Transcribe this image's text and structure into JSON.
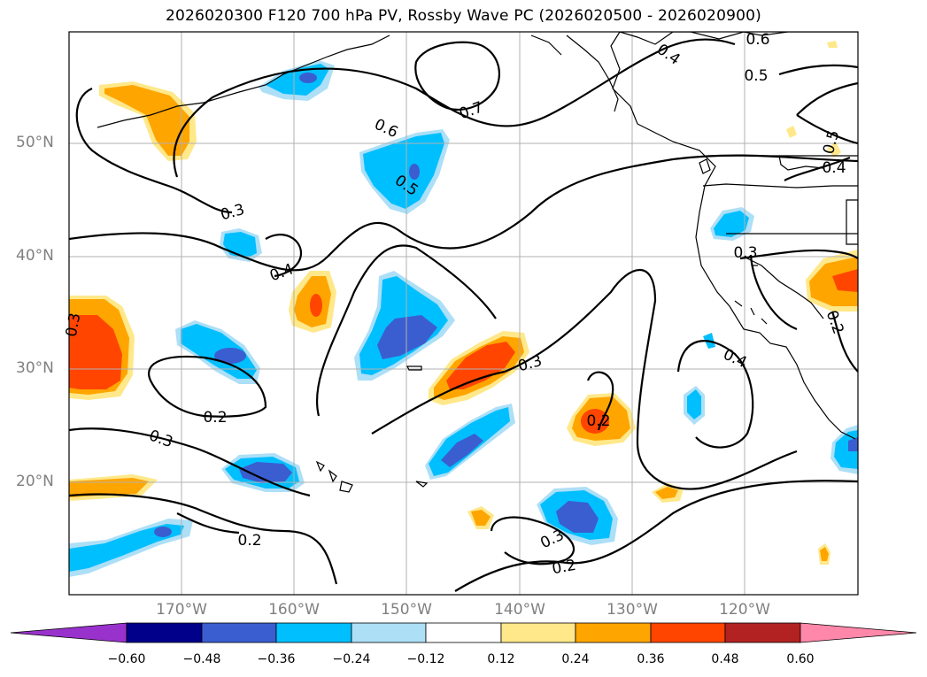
{
  "title": "2026020300 F120 700 hPa PV, Rossby Wave PC (2026020500 - 2026020900)",
  "lat_labels": [
    "50°N",
    "40°N",
    "30°N",
    "20°N"
  ],
  "lon_labels": [
    "170°W",
    "160°W",
    "150°W",
    "140°W",
    "130°W",
    "120°W"
  ],
  "contour_labels": [
    "0.6",
    "0.4",
    "0.5",
    "0.7",
    "0.6",
    "0.5",
    "0.5",
    "0.4",
    "0.3",
    "0.4",
    "0.3",
    "0.3",
    "0.2",
    "0.3",
    "0.3",
    "0.4",
    "0.2",
    "0.2",
    "0.3",
    "0.2",
    "0.2"
  ],
  "colorbar": {
    "ticks": [
      "−0.60",
      "−0.48",
      "−0.36",
      "−0.24",
      "−0.12",
      "0.12",
      "0.24",
      "0.36",
      "0.48",
      "0.60"
    ],
    "colors": [
      "#9932CC",
      "#00008B",
      "#3A5ED0",
      "#00BFFF",
      "#ADDFF7",
      "#FFFFFF",
      "#FFE88A",
      "#FFA500",
      "#FF4500",
      "#B22222",
      "#FF88AA"
    ]
  }
}
